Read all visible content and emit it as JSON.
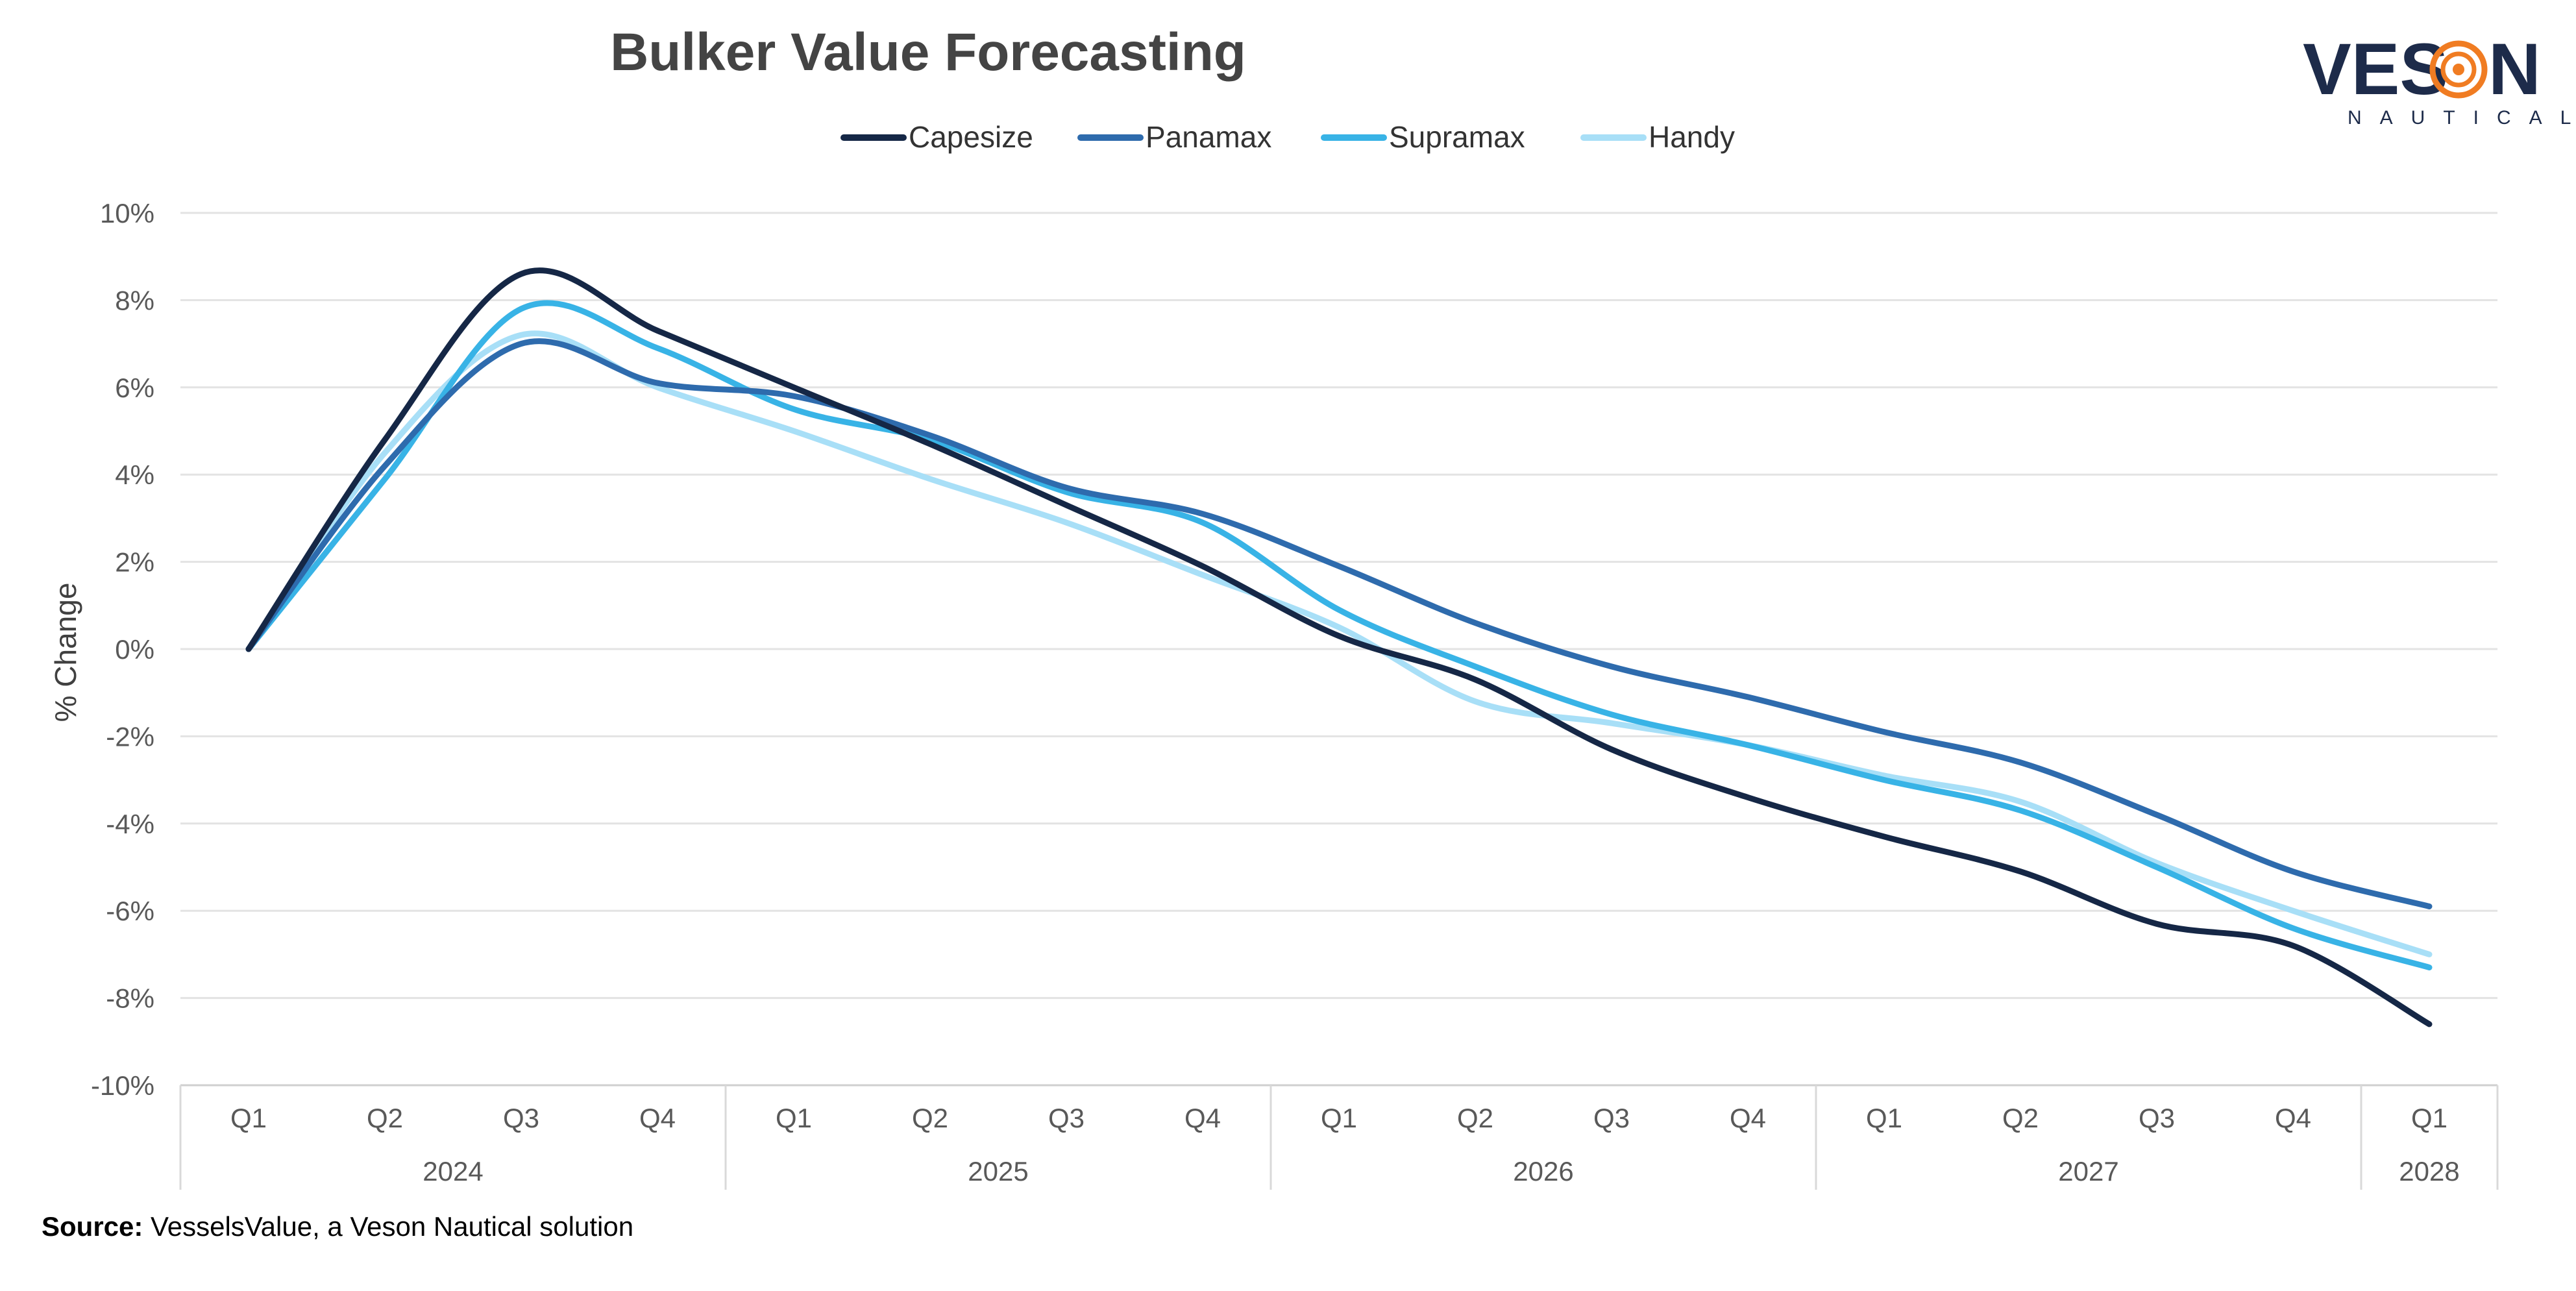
{
  "brand": {
    "name_left": "VES",
    "name_right": "N",
    "subtitle": "NAUTICAL",
    "name_color": "#1d2b4a",
    "accent_color": "#f07c22"
  },
  "source": {
    "label": "Source:",
    "text": " VesselsValue, a Veson Nautical solution"
  },
  "chart_data": {
    "type": "line",
    "title": "Bulker Value Forecasting",
    "ylabel": "% Change",
    "xlabel": "",
    "ylim": [
      -10,
      10
    ],
    "y_ticks": [
      10,
      8,
      6,
      4,
      2,
      0,
      -2,
      -4,
      -6,
      -8,
      -10
    ],
    "y_tick_labels": [
      "10%",
      "8%",
      "6%",
      "4%",
      "2%",
      "0%",
      "-2%",
      "-4%",
      "-6%",
      "-8%",
      "-10%"
    ],
    "grid": true,
    "legend_position": "top-center",
    "categories": [
      "Q1",
      "Q2",
      "Q3",
      "Q4",
      "Q1",
      "Q2",
      "Q3",
      "Q4",
      "Q1",
      "Q2",
      "Q3",
      "Q4",
      "Q1",
      "Q2",
      "Q3",
      "Q4",
      "Q1"
    ],
    "year_groups": [
      {
        "label": "2024",
        "count": 4
      },
      {
        "label": "2025",
        "count": 4
      },
      {
        "label": "2026",
        "count": 4
      },
      {
        "label": "2027",
        "count": 4
      },
      {
        "label": "2028",
        "count": 1
      }
    ],
    "series": [
      {
        "name": "Capesize",
        "color": "#152746",
        "values": [
          0,
          4.8,
          8.6,
          7.3,
          6.0,
          4.7,
          3.3,
          1.9,
          0.3,
          -0.7,
          -2.3,
          -3.4,
          -4.3,
          -5.1,
          -6.3,
          -6.8,
          -8.6
        ]
      },
      {
        "name": "Panamax",
        "color": "#2e6bad",
        "values": [
          0,
          4.2,
          7.0,
          6.1,
          5.8,
          4.9,
          3.7,
          3.1,
          1.9,
          0.6,
          -0.4,
          -1.1,
          -1.9,
          -2.6,
          -3.8,
          -5.1,
          -5.9
        ]
      },
      {
        "name": "Supramax",
        "color": "#38b3e6",
        "values": [
          0,
          3.9,
          7.8,
          6.9,
          5.5,
          4.8,
          3.6,
          2.9,
          0.9,
          -0.4,
          -1.5,
          -2.2,
          -3.0,
          -3.7,
          -5.0,
          -6.4,
          -7.3
        ]
      },
      {
        "name": "Handy",
        "color": "#a8dff7",
        "values": [
          0,
          4.5,
          7.2,
          6.0,
          5.0,
          3.9,
          2.9,
          1.7,
          0.5,
          -1.2,
          -1.7,
          -2.2,
          -2.9,
          -3.5,
          -4.9,
          -6.0,
          -7.0
        ]
      }
    ]
  }
}
